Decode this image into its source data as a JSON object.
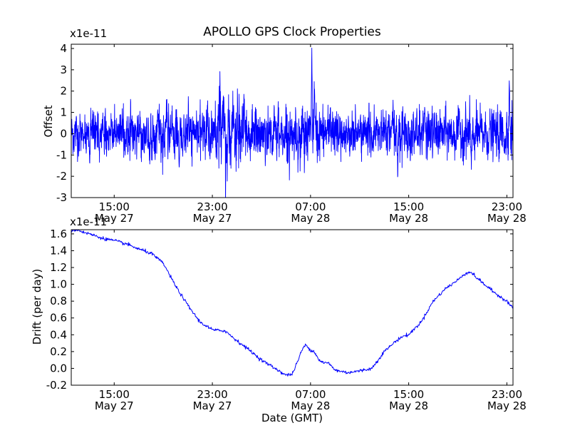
{
  "figure": {
    "title": "APOLLO GPS Clock Properties",
    "xlabel": "Date (GMT)"
  },
  "chart_data": [
    {
      "type": "line",
      "name": "offset",
      "title": "APOLLO GPS Clock Properties",
      "ylabel": "Offset",
      "scale_label": "x1e-11",
      "ylim": [
        -3,
        4.2
      ],
      "yticks": [
        "-3",
        "-2",
        "-1",
        "0",
        "1",
        "2",
        "3",
        "4"
      ],
      "xlim_hours": [
        11.5,
        47.5
      ],
      "xticks": [
        {
          "hour": 15,
          "line1": "15:00",
          "line2": "May 27"
        },
        {
          "hour": 23,
          "line1": "23:00",
          "line2": "May 27"
        },
        {
          "hour": 31,
          "line1": "07:00",
          "line2": "May 28"
        },
        {
          "hour": 39,
          "line1": "15:00",
          "line2": "May 28"
        },
        {
          "hour": 47,
          "line1": "23:00",
          "line2": "May 28"
        }
      ],
      "color": "#0000ff",
      "noise_std": 0.45,
      "series_env": [
        [
          11.5,
          0.5
        ],
        [
          14,
          0.45
        ],
        [
          16,
          0.45
        ],
        [
          18,
          0.5
        ],
        [
          20,
          0.55
        ],
        [
          21,
          0.5
        ],
        [
          22,
          0.45
        ],
        [
          23.5,
          0.7
        ],
        [
          24.5,
          0.9
        ],
        [
          26,
          0.6
        ],
        [
          28,
          0.55
        ],
        [
          30,
          0.6
        ],
        [
          31,
          0.7
        ],
        [
          32,
          0.55
        ],
        [
          34,
          0.45
        ],
        [
          36,
          0.5
        ],
        [
          38,
          0.6
        ],
        [
          40,
          0.55
        ],
        [
          42,
          0.5
        ],
        [
          44,
          0.55
        ],
        [
          46,
          0.5
        ],
        [
          47.5,
          0.7
        ]
      ],
      "features": [
        {
          "x": 12.4,
          "y": 0.3,
          "amp": 1.5,
          "w": 0.08
        },
        {
          "x": 12.7,
          "y": -1.0,
          "amp": -0.9,
          "w": 0.08
        },
        {
          "x": 13.0,
          "y": -1.8,
          "amp": -0.8,
          "w": 0.06
        },
        {
          "x": 17.9,
          "y": -1.6,
          "amp": -0.9,
          "w": 0.07
        },
        {
          "x": 20.3,
          "y": -1.7,
          "amp": -0.9,
          "w": 0.07
        },
        {
          "x": 22.6,
          "y": 1.5,
          "amp": 0.9,
          "w": 0.08
        },
        {
          "x": 23.6,
          "y": 3.5,
          "amp": 2.8,
          "w": 0.12
        },
        {
          "x": 23.9,
          "y": 2.0,
          "amp": 1.2,
          "w": 0.15
        },
        {
          "x": 24.2,
          "y": -2.2,
          "amp": -1.5,
          "w": 0.06
        },
        {
          "x": 30.5,
          "y": -2.0,
          "amp": -1.4,
          "w": 0.08
        },
        {
          "x": 31.1,
          "y": 4.2,
          "amp": 4.0,
          "w": 0.06
        },
        {
          "x": 31.3,
          "y": 2.3,
          "amp": 1.5,
          "w": 0.1
        },
        {
          "x": 32.6,
          "y": 1.3,
          "amp": 0.7,
          "w": 0.08
        },
        {
          "x": 38.1,
          "y": -2.0,
          "amp": -1.2,
          "w": 0.07
        },
        {
          "x": 40.3,
          "y": 1.3,
          "amp": 0.8,
          "w": 0.08
        },
        {
          "x": 44.1,
          "y": -1.3,
          "amp": -0.8,
          "w": 0.08
        },
        {
          "x": 47.2,
          "y": 2.6,
          "amp": 2.0,
          "w": 0.07
        },
        {
          "x": 47.4,
          "y": 1.4,
          "amp": 0.8,
          "w": 0.08
        }
      ]
    },
    {
      "type": "line",
      "name": "drift",
      "ylabel": "Drift (per day)",
      "scale_label": "x1e-11",
      "xlabel": "Date (GMT)",
      "ylim": [
        -0.2,
        1.65
      ],
      "yticks": [
        "-0.2",
        "0.0",
        "0.2",
        "0.4",
        "0.6",
        "0.8",
        "1.0",
        "1.2",
        "1.4",
        "1.6"
      ],
      "xlim_hours": [
        11.5,
        47.5
      ],
      "xticks": [
        {
          "hour": 15,
          "line1": "15:00",
          "line2": "May 27"
        },
        {
          "hour": 23,
          "line1": "23:00",
          "line2": "May 27"
        },
        {
          "hour": 31,
          "line1": "07:00",
          "line2": "May 28"
        },
        {
          "hour": 39,
          "line1": "15:00",
          "line2": "May 28"
        },
        {
          "hour": 47,
          "line1": "23:00",
          "line2": "May 28"
        }
      ],
      "color": "#0000ff",
      "x": [
        11.5,
        12.0,
        12.5,
        13.0,
        14.0,
        15.0,
        16.0,
        17.0,
        18.0,
        19.0,
        20.0,
        21.0,
        22.0,
        23.0,
        23.5,
        24.0,
        25.0,
        26.0,
        27.0,
        28.0,
        29.0,
        29.5,
        30.0,
        30.3,
        30.6,
        31.0,
        31.3,
        31.7,
        32.0,
        32.5,
        33.0,
        34.0,
        35.0,
        36.0,
        37.0,
        38.0,
        38.5,
        39.0,
        40.0,
        41.0,
        42.0,
        43.0,
        43.5,
        44.0,
        45.0,
        46.0,
        47.0,
        47.5
      ],
      "y": [
        1.64,
        1.65,
        1.62,
        1.6,
        1.55,
        1.52,
        1.48,
        1.42,
        1.37,
        1.25,
        0.98,
        0.75,
        0.55,
        0.46,
        0.45,
        0.45,
        0.33,
        0.22,
        0.1,
        0.01,
        -0.08,
        -0.07,
        0.1,
        0.22,
        0.28,
        0.22,
        0.2,
        0.1,
        0.07,
        0.06,
        -0.02,
        -0.05,
        -0.03,
        0.0,
        0.2,
        0.33,
        0.38,
        0.4,
        0.55,
        0.8,
        0.95,
        1.05,
        1.12,
        1.15,
        1.02,
        0.9,
        0.8,
        0.72
      ],
      "jitter": 0.01
    }
  ]
}
